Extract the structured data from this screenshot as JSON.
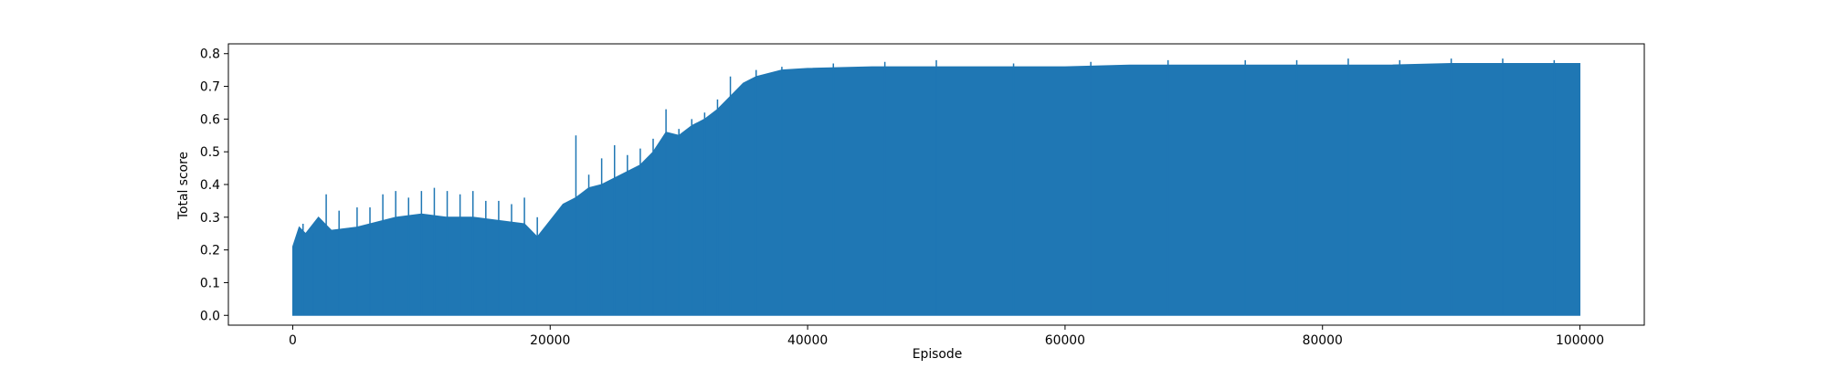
{
  "chart_data": {
    "type": "line",
    "title": "",
    "xlabel": "Episode",
    "ylabel": "Total score",
    "xlim": [
      -5000,
      105000
    ],
    "ylim": [
      -0.03,
      0.83
    ],
    "x_ticks": [
      0,
      20000,
      40000,
      60000,
      80000,
      100000
    ],
    "x_tick_labels": [
      "0",
      "20000",
      "40000",
      "60000",
      "80000",
      "100000"
    ],
    "y_ticks": [
      0.0,
      0.1,
      0.2,
      0.3,
      0.4,
      0.5,
      0.6,
      0.7,
      0.8
    ],
    "y_tick_labels": [
      "0.0",
      "0.1",
      "0.2",
      "0.3",
      "0.4",
      "0.5",
      "0.6",
      "0.7",
      "0.8"
    ],
    "grid": false,
    "legend": "none",
    "series": [
      {
        "color": "#1f77b4",
        "x": [
          0,
          500,
          1000,
          2000,
          3000,
          5000,
          8000,
          10000,
          12000,
          14000,
          16000,
          18000,
          19000,
          20000,
          21000,
          22000,
          23000,
          24000,
          25000,
          26000,
          27000,
          28000,
          29000,
          30000,
          31000,
          32000,
          33000,
          34000,
          35000,
          36000,
          37000,
          38000,
          40000,
          45000,
          50000,
          55000,
          60000,
          65000,
          70000,
          75000,
          80000,
          85000,
          90000,
          95000,
          100000
        ],
        "upper": [
          0.21,
          0.27,
          0.25,
          0.3,
          0.26,
          0.27,
          0.3,
          0.31,
          0.3,
          0.3,
          0.29,
          0.28,
          0.24,
          0.29,
          0.34,
          0.36,
          0.39,
          0.4,
          0.42,
          0.44,
          0.46,
          0.5,
          0.56,
          0.55,
          0.58,
          0.6,
          0.63,
          0.67,
          0.71,
          0.73,
          0.74,
          0.75,
          0.755,
          0.76,
          0.76,
          0.76,
          0.76,
          0.765,
          0.765,
          0.765,
          0.765,
          0.765,
          0.77,
          0.77,
          0.77
        ],
        "lower": [
          0.0,
          0.0,
          0.0,
          0.0,
          0.0,
          0.0,
          0.0,
          0.0,
          0.0,
          0.0,
          0.0,
          0.0,
          0.0,
          0.0,
          0.0,
          0.0,
          0.0,
          0.0,
          0.0,
          0.0,
          0.0,
          0.0,
          0.0,
          0.0,
          0.0,
          0.0,
          0.0,
          0.0,
          0.0,
          0.0,
          0.0,
          0.0,
          0.0,
          0.0,
          0.0,
          0.0,
          0.0,
          0.0,
          0.0,
          0.0,
          0.0,
          0.0,
          0.0,
          0.0,
          0.0
        ],
        "spikes": [
          [
            200,
            0.21
          ],
          [
            800,
            0.28
          ],
          [
            1600,
            0.25
          ],
          [
            2600,
            0.37
          ],
          [
            3600,
            0.32
          ],
          [
            5000,
            0.33
          ],
          [
            6000,
            0.33
          ],
          [
            7000,
            0.37
          ],
          [
            8000,
            0.38
          ],
          [
            9000,
            0.36
          ],
          [
            10000,
            0.38
          ],
          [
            11000,
            0.39
          ],
          [
            12000,
            0.38
          ],
          [
            13000,
            0.37
          ],
          [
            14000,
            0.38
          ],
          [
            15000,
            0.35
          ],
          [
            16000,
            0.35
          ],
          [
            17000,
            0.34
          ],
          [
            18000,
            0.36
          ],
          [
            19000,
            0.3
          ],
          [
            22000,
            0.55
          ],
          [
            23000,
            0.43
          ],
          [
            24000,
            0.48
          ],
          [
            25000,
            0.52
          ],
          [
            26000,
            0.49
          ],
          [
            27000,
            0.51
          ],
          [
            28000,
            0.54
          ],
          [
            29000,
            0.63
          ],
          [
            30000,
            0.57
          ],
          [
            31000,
            0.6
          ],
          [
            32000,
            0.62
          ],
          [
            33000,
            0.66
          ],
          [
            34000,
            0.73
          ],
          [
            36000,
            0.75
          ],
          [
            38000,
            0.76
          ],
          [
            42000,
            0.77
          ],
          [
            46000,
            0.775
          ],
          [
            50000,
            0.78
          ],
          [
            56000,
            0.77
          ],
          [
            62000,
            0.775
          ],
          [
            68000,
            0.78
          ],
          [
            74000,
            0.78
          ],
          [
            78000,
            0.78
          ],
          [
            82000,
            0.785
          ],
          [
            86000,
            0.78
          ],
          [
            90000,
            0.785
          ],
          [
            94000,
            0.785
          ],
          [
            98000,
            0.78
          ]
        ]
      }
    ]
  }
}
